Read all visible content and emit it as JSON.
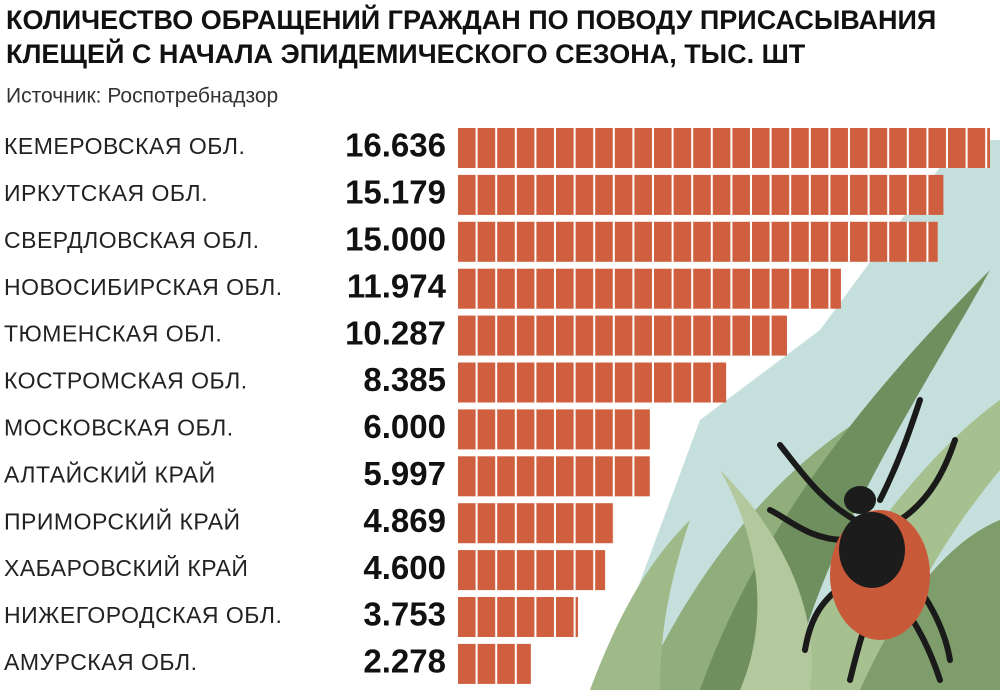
{
  "chart_data": {
    "type": "bar",
    "orientation": "horizontal",
    "title": [
      "КОЛИЧЕСТВО ОБРАЩЕНИЙ ГРАЖДАН ПО ПОВОДУ ПРИСАСЫВАНИЯ",
      "КЛЕЩЕЙ С НАЧАЛА ЭПИДЕМИЧЕСКОГО СЕЗОНА, ТЫС. ШТ"
    ],
    "source": "Источник: Роспотребнадзор",
    "categories": [
      "КЕМЕРОВСКАЯ ОБЛ.",
      "ИРКУТСКАЯ ОБЛ.",
      "СВЕРДЛОВСКАЯ ОБЛ.",
      "НОВОСИБИРСКАЯ ОБЛ.",
      "ТЮМЕНСКАЯ ОБЛ.",
      "КОСТРОМСКАЯ ОБЛ.",
      "МОСКОВСКАЯ ОБЛ.",
      "АЛТАЙСКИЙ КРАЙ",
      "ПРИМОРСКИЙ КРАЙ",
      "ХАБАРОВСКИЙ КРАЙ",
      "НИЖЕГОРОДСКАЯ ОБЛ.",
      "АМУРСКАЯ ОБЛ."
    ],
    "values": [
      16.636,
      15.179,
      15.0,
      11.974,
      10.287,
      8.385,
      6.0,
      5.997,
      4.869,
      4.6,
      3.753,
      2.278
    ],
    "value_labels": [
      "16.636",
      "15.179",
      "15.000",
      "11.974",
      "10.287",
      "8.385",
      "6.000",
      "5.997",
      "4.869",
      "4.600",
      "3.753",
      "2.278"
    ],
    "color": "#cf5f3e"
  }
}
